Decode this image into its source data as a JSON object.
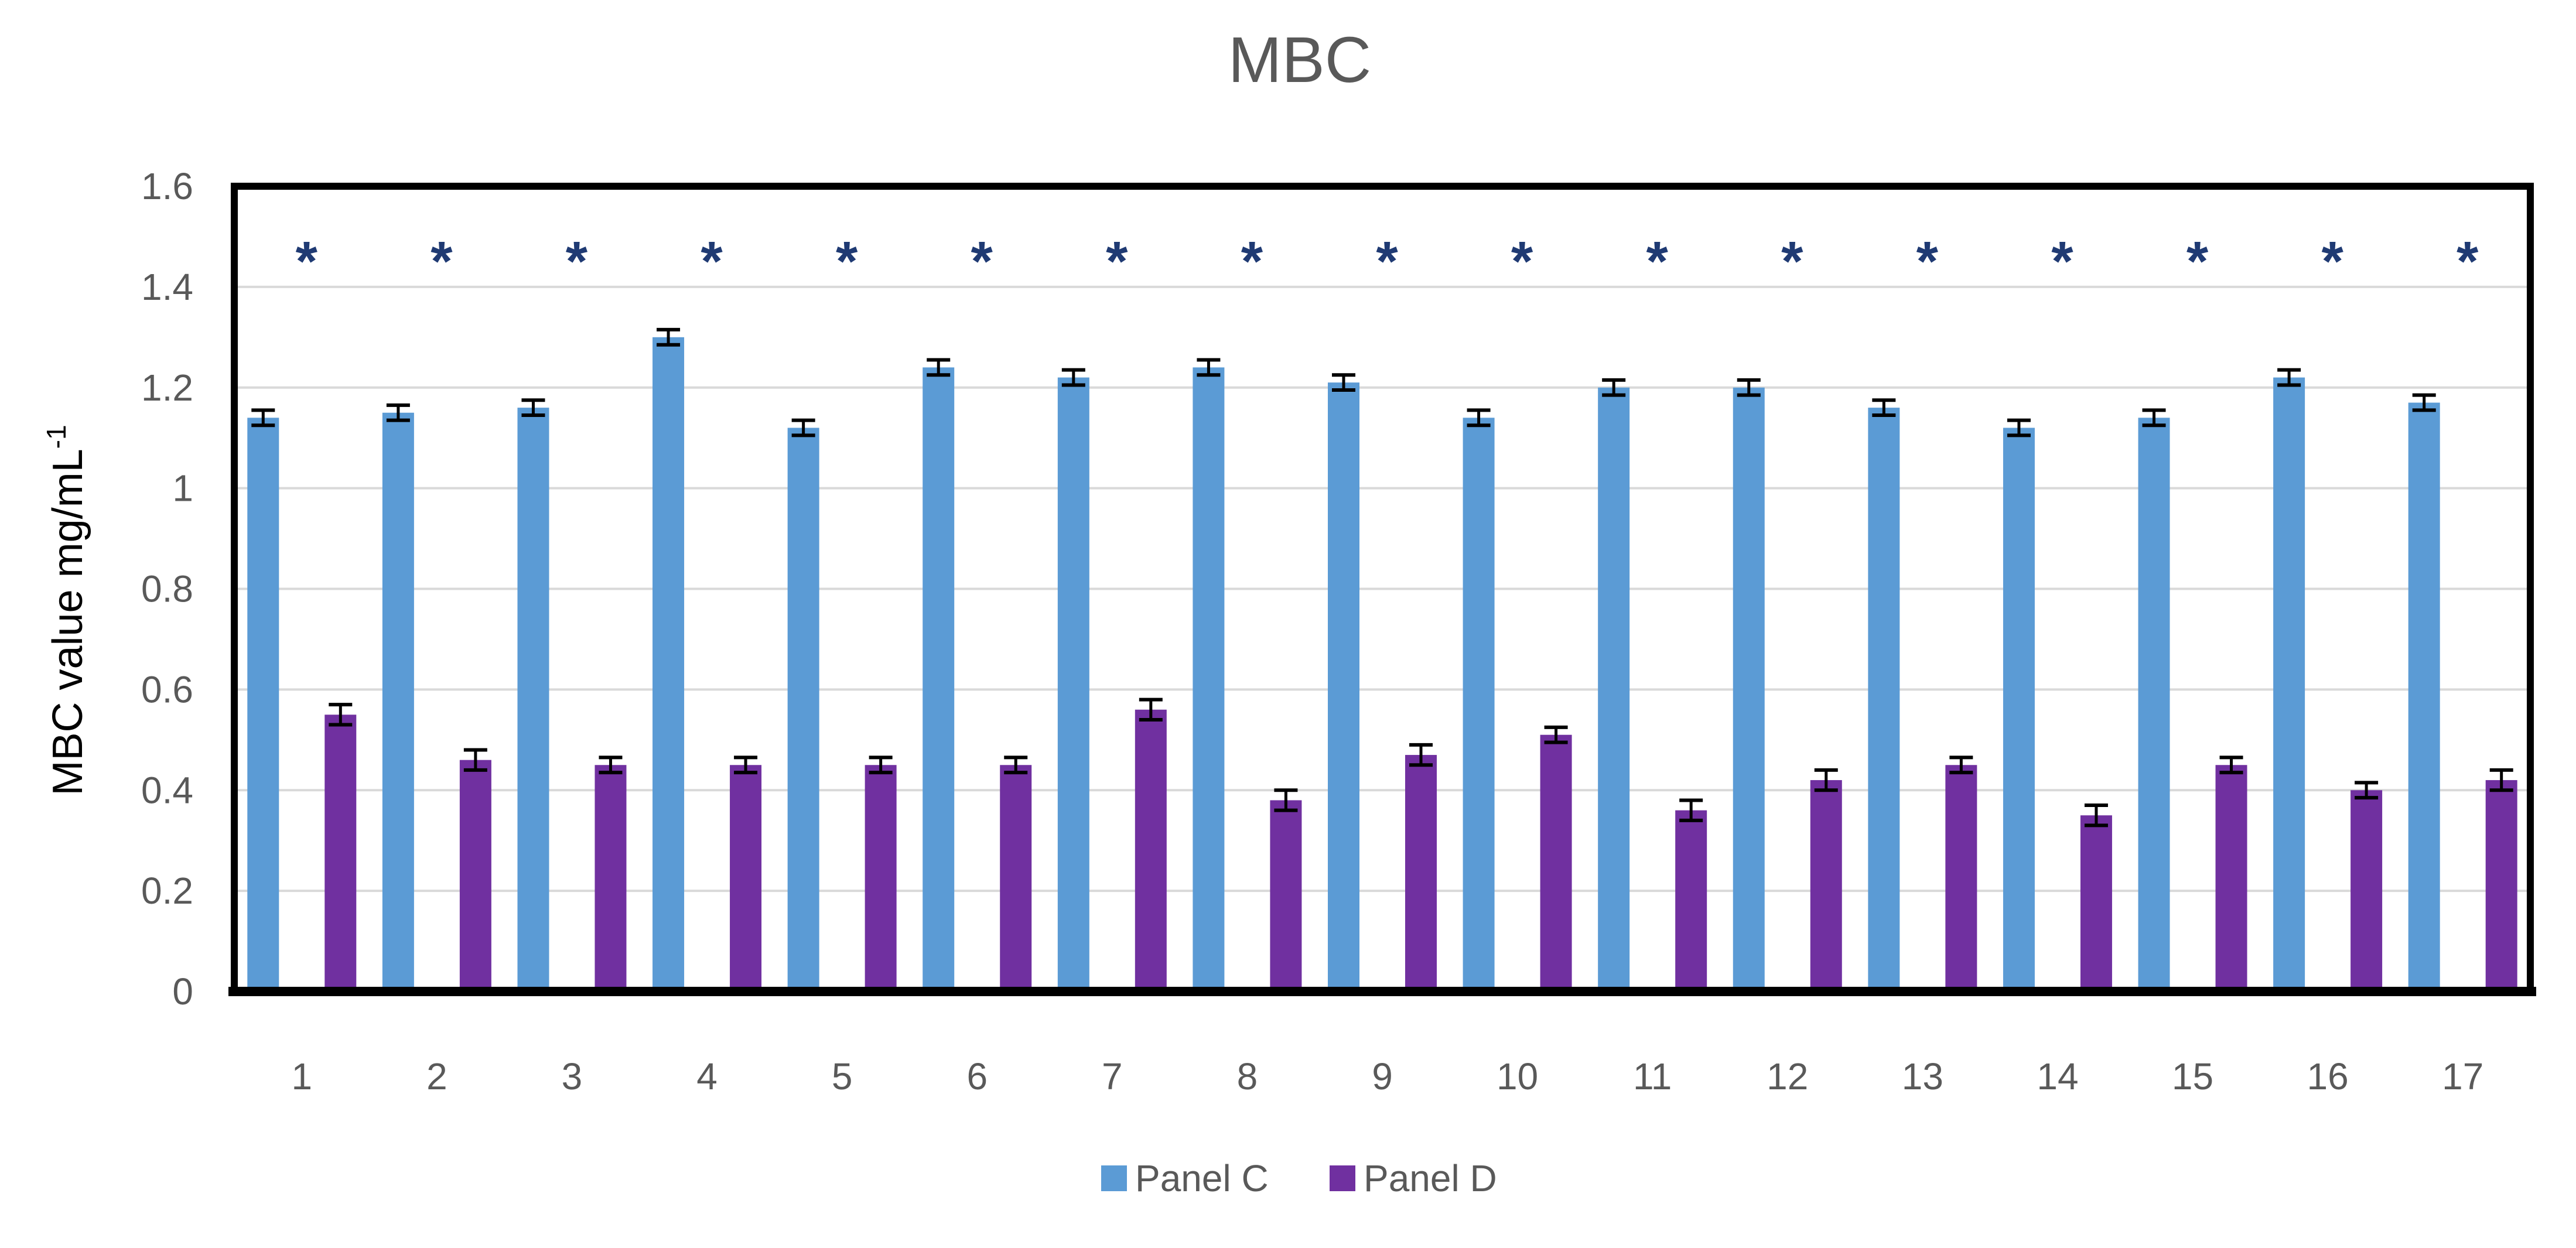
{
  "chart_data": {
    "type": "bar",
    "title": "MBC",
    "xlabel": "",
    "ylabel": "MBC value mg/mL",
    "ylabel_superscript": "-1",
    "ylim": [
      0,
      1.6
    ],
    "yticks": [
      "0",
      "0.2",
      "0.4",
      "0.6",
      "0.8",
      "1",
      "1.2",
      "1.4",
      "1.6"
    ],
    "grid": true,
    "legend": "bottom",
    "categories": [
      "1",
      "2",
      "3",
      "4",
      "5",
      "6",
      "7",
      "8",
      "9",
      "10",
      "11",
      "12",
      "13",
      "14",
      "15",
      "16",
      "17"
    ],
    "series": [
      {
        "name": "Panel C",
        "color": "#5b9bd5",
        "values": [
          1.14,
          1.15,
          1.16,
          1.3,
          1.12,
          1.24,
          1.22,
          1.24,
          1.21,
          1.14,
          1.2,
          1.2,
          1.16,
          1.12,
          1.14,
          1.22,
          1.17
        ],
        "errors": [
          0.015,
          0.015,
          0.015,
          0.015,
          0.015,
          0.015,
          0.015,
          0.015,
          0.015,
          0.015,
          0.015,
          0.015,
          0.015,
          0.015,
          0.015,
          0.015,
          0.015
        ]
      },
      {
        "name": "Panel D",
        "color": "#7030a0",
        "values": [
          0.55,
          0.46,
          0.45,
          0.45,
          0.45,
          0.45,
          0.56,
          0.38,
          0.47,
          0.51,
          0.36,
          0.42,
          0.45,
          0.35,
          0.45,
          0.4,
          0.42
        ],
        "errors": [
          0.02,
          0.02,
          0.015,
          0.015,
          0.015,
          0.015,
          0.02,
          0.02,
          0.02,
          0.015,
          0.02,
          0.02,
          0.015,
          0.02,
          0.015,
          0.015,
          0.02
        ]
      }
    ],
    "annotation_symbol": "*",
    "annotation_level": 1.48
  }
}
